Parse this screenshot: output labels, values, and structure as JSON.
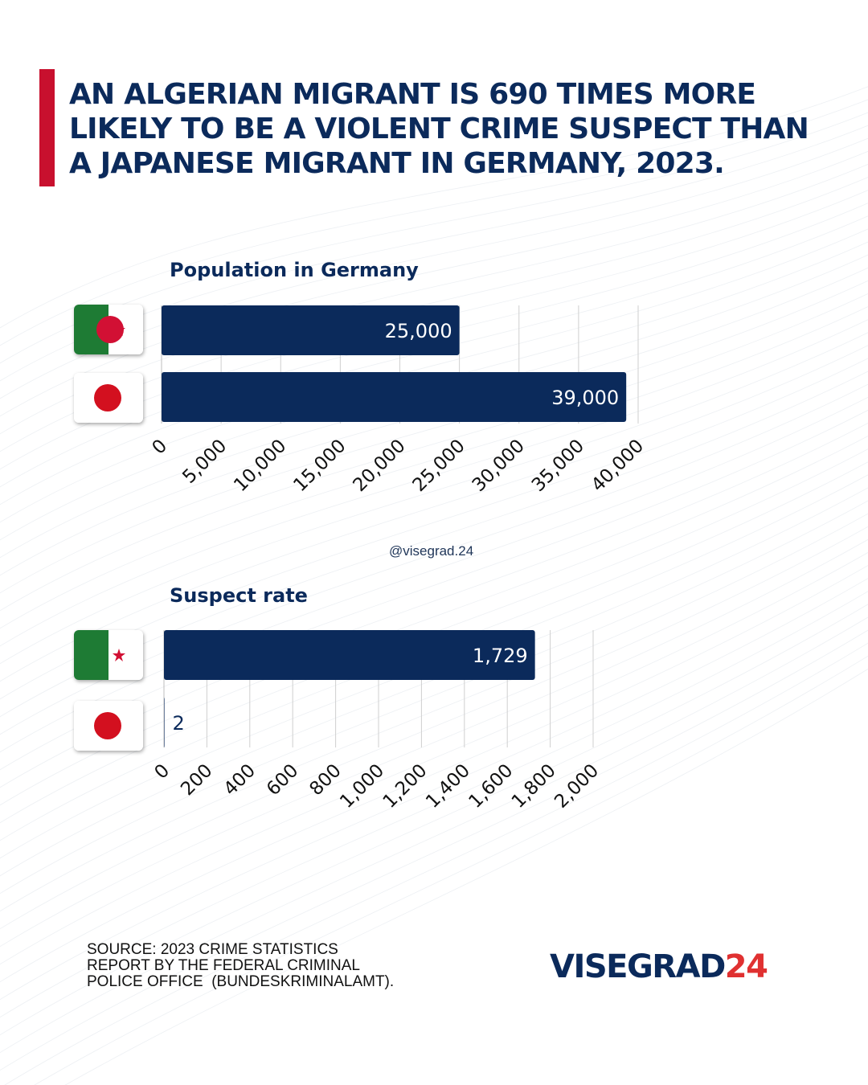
{
  "headline": {
    "lines": [
      "AN ALGERIAN MIGRANT IS 690 TIMES MORE",
      "LIKELY TO BE A VIOLENT CRIME SUSPECT THAN",
      "A JAPANESE MIGRANT IN GERMANY, 2023."
    ],
    "accent_color": "#c8102e"
  },
  "watermark_handle": "@visegrad.24",
  "source_lines": [
    "SOURCE: 2023 CRIME STATISTICS",
    "REPORT BY THE FEDERAL CRIMINAL",
    "POLICE OFFICE  (BUNDESKRIMINALAMT)."
  ],
  "logo": {
    "part1": "VISEGRAD",
    "part2": "24",
    "color1": "#0b2a5b",
    "color2": "#e03131"
  },
  "chart_data": [
    {
      "type": "bar",
      "orientation": "horizontal",
      "title": "Population in Germany",
      "categories": [
        "Algeria",
        "Japan"
      ],
      "category_icons": [
        "algeria-flag-icon",
        "japan-flag-icon"
      ],
      "values": [
        25000,
        39000
      ],
      "value_labels": [
        "25,000",
        "39,000"
      ],
      "xlim": [
        0,
        40000
      ],
      "xticks": [
        0,
        5000,
        10000,
        15000,
        20000,
        25000,
        30000,
        35000,
        40000
      ],
      "xtick_labels": [
        "0",
        "5,000",
        "10,000",
        "15,000",
        "20,000",
        "25,000",
        "30,000",
        "35,000",
        "40,000"
      ],
      "grid": true,
      "bar_color": "#0b2a5b"
    },
    {
      "type": "bar",
      "orientation": "horizontal",
      "title": "Suspect rate",
      "categories": [
        "Algeria",
        "Japan"
      ],
      "category_icons": [
        "algeria-flag-icon",
        "japan-flag-icon"
      ],
      "values": [
        1729,
        2
      ],
      "value_labels": [
        "1,729",
        "2"
      ],
      "xlim": [
        0,
        2000
      ],
      "xticks": [
        0,
        200,
        400,
        600,
        800,
        1000,
        1200,
        1400,
        1600,
        1800,
        2000
      ],
      "xtick_labels": [
        "0",
        "200",
        "400",
        "600",
        "800",
        "1,000",
        "1,200",
        "1,400",
        "1,600",
        "1,800",
        "2,000"
      ],
      "grid": true,
      "bar_color": "#0b2a5b"
    }
  ]
}
